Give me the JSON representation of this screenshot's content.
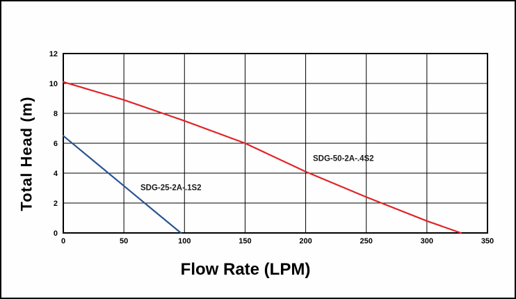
{
  "figure": {
    "background": "#fefefe",
    "border_color": "#000000",
    "grid_color": "#000000"
  },
  "chart_data": {
    "type": "line",
    "title": "",
    "xlabel": "Flow Rate (LPM)",
    "ylabel": "Total Head (m)",
    "xlim": [
      0,
      350
    ],
    "ylim": [
      0,
      12
    ],
    "x_ticks": [
      0,
      50,
      100,
      150,
      200,
      250,
      300,
      350
    ],
    "y_ticks": [
      0,
      2,
      4,
      6,
      8,
      10,
      12
    ],
    "grid": true,
    "legend_position": "none",
    "series": [
      {
        "name": "SDG-25-2A-.1S2",
        "color": "#275491",
        "x": [
          0,
          25,
          50,
          75,
          97
        ],
        "y": [
          6.5,
          4.82,
          3.15,
          1.47,
          0
        ]
      },
      {
        "name": "SDG-50-2A-.4S2",
        "color": "#e02327",
        "x": [
          0,
          50,
          100,
          150,
          200,
          250,
          300,
          328
        ],
        "y": [
          10.1,
          8.9,
          7.5,
          6.0,
          4.1,
          2.4,
          0.8,
          0
        ]
      }
    ],
    "annotations": [
      {
        "text": "SDG-25-2A-.1S2",
        "x": 63.7,
        "y": 3.05
      },
      {
        "text": "SDG-50-2A-.4S2",
        "x": 206,
        "y": 5.0
      }
    ]
  }
}
